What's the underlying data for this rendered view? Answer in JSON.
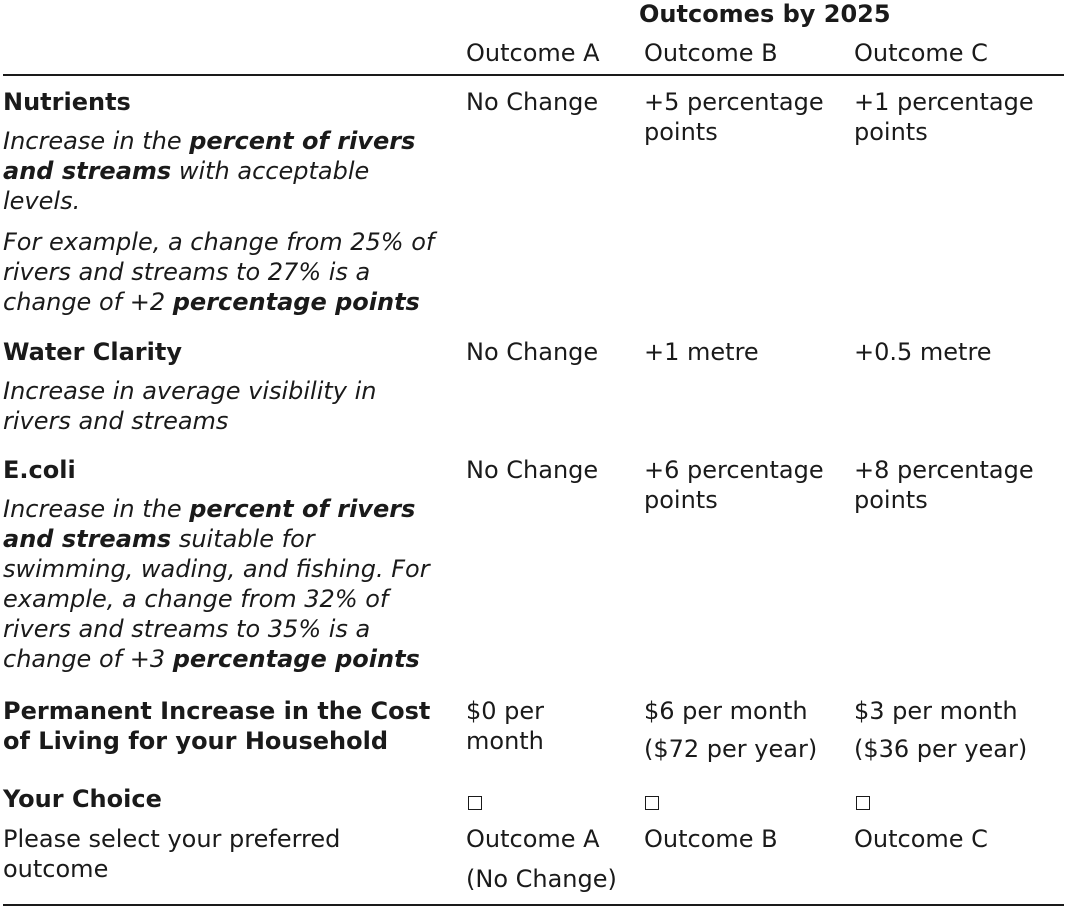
{
  "header": {
    "group_title": "Outcomes by 2025",
    "columns": [
      "Outcome A",
      "Outcome B",
      "Outcome C"
    ]
  },
  "rows": {
    "nutrients": {
      "label": "Nutrients",
      "desc1_pre": "Increase in the ",
      "desc1_bold": "percent of rivers and streams",
      "desc1_post": " with acceptable levels.",
      "desc2_pre": "For example, a change from 25% of rivers and streams to 27% is a change of +2 ",
      "desc2_bold": "percentage points",
      "a": "No Change",
      "b": "+5 percentage points",
      "c": "+1 percentage points"
    },
    "clarity": {
      "label": "Water Clarity",
      "desc": "Increase in average visibility in rivers and streams",
      "a": "No Change",
      "b": "+1 metre",
      "c": "+0.5 metre"
    },
    "ecoli": {
      "label": "E.coli",
      "desc_pre": "Increase in the ",
      "desc_bold": "percent of rivers and streams",
      "desc_mid": " suitable for swimming, wading, and fishing. For example, a change from 32% of rivers and streams to 35% is a change of +3 ",
      "desc_bold2": "percentage points",
      "a": "No Change",
      "b": "+6 percentage points",
      "c": "+8 percentage points"
    },
    "cost": {
      "label": "Permanent Increase in the Cost of Living for your Household",
      "a": "$0 per month",
      "b_line1": "$6 per month",
      "b_line2": "($72 per year)",
      "c_line1": "$3 per month",
      "c_line2": "($36 per year)"
    },
    "choice": {
      "label": "Your Choice",
      "desc": "Please select your preferred outcome",
      "a_line1": "Outcome A",
      "a_line2": "(No Change)",
      "b": "Outcome B",
      "c": "Outcome C"
    }
  }
}
